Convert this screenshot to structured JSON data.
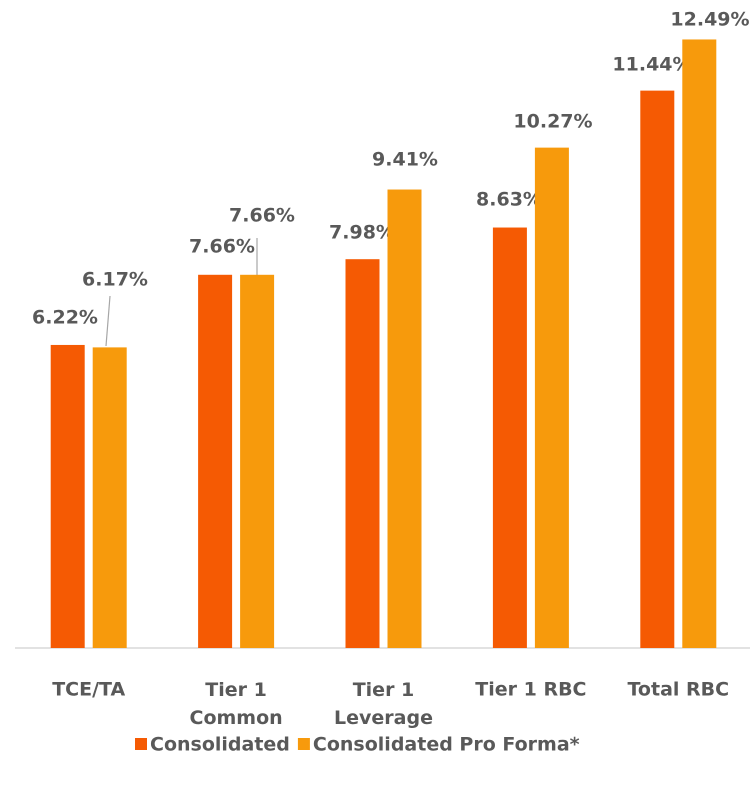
{
  "chart_data": {
    "type": "bar",
    "categories": [
      "TCE/TA",
      "Tier 1 Common",
      "Tier 1 Leverage",
      "Tier 1 RBC",
      "Total RBC"
    ],
    "series": [
      {
        "name": "Consolidated",
        "color": "#f55a03",
        "values": [
          6.22,
          7.66,
          7.98,
          8.63,
          11.44
        ],
        "value_labels": [
          "6.22%",
          "7.66%",
          "7.98%",
          "8.63%",
          "11.44%"
        ]
      },
      {
        "name": "Consolidated Pro Forma*",
        "color": "#f79a0c",
        "values": [
          6.17,
          7.66,
          9.41,
          10.27,
          12.49
        ],
        "value_labels": [
          "6.17%",
          "7.66%",
          "9.41%",
          "10.27%",
          "12.49%"
        ]
      }
    ],
    "ylim": [
      0,
      13.3
    ]
  }
}
